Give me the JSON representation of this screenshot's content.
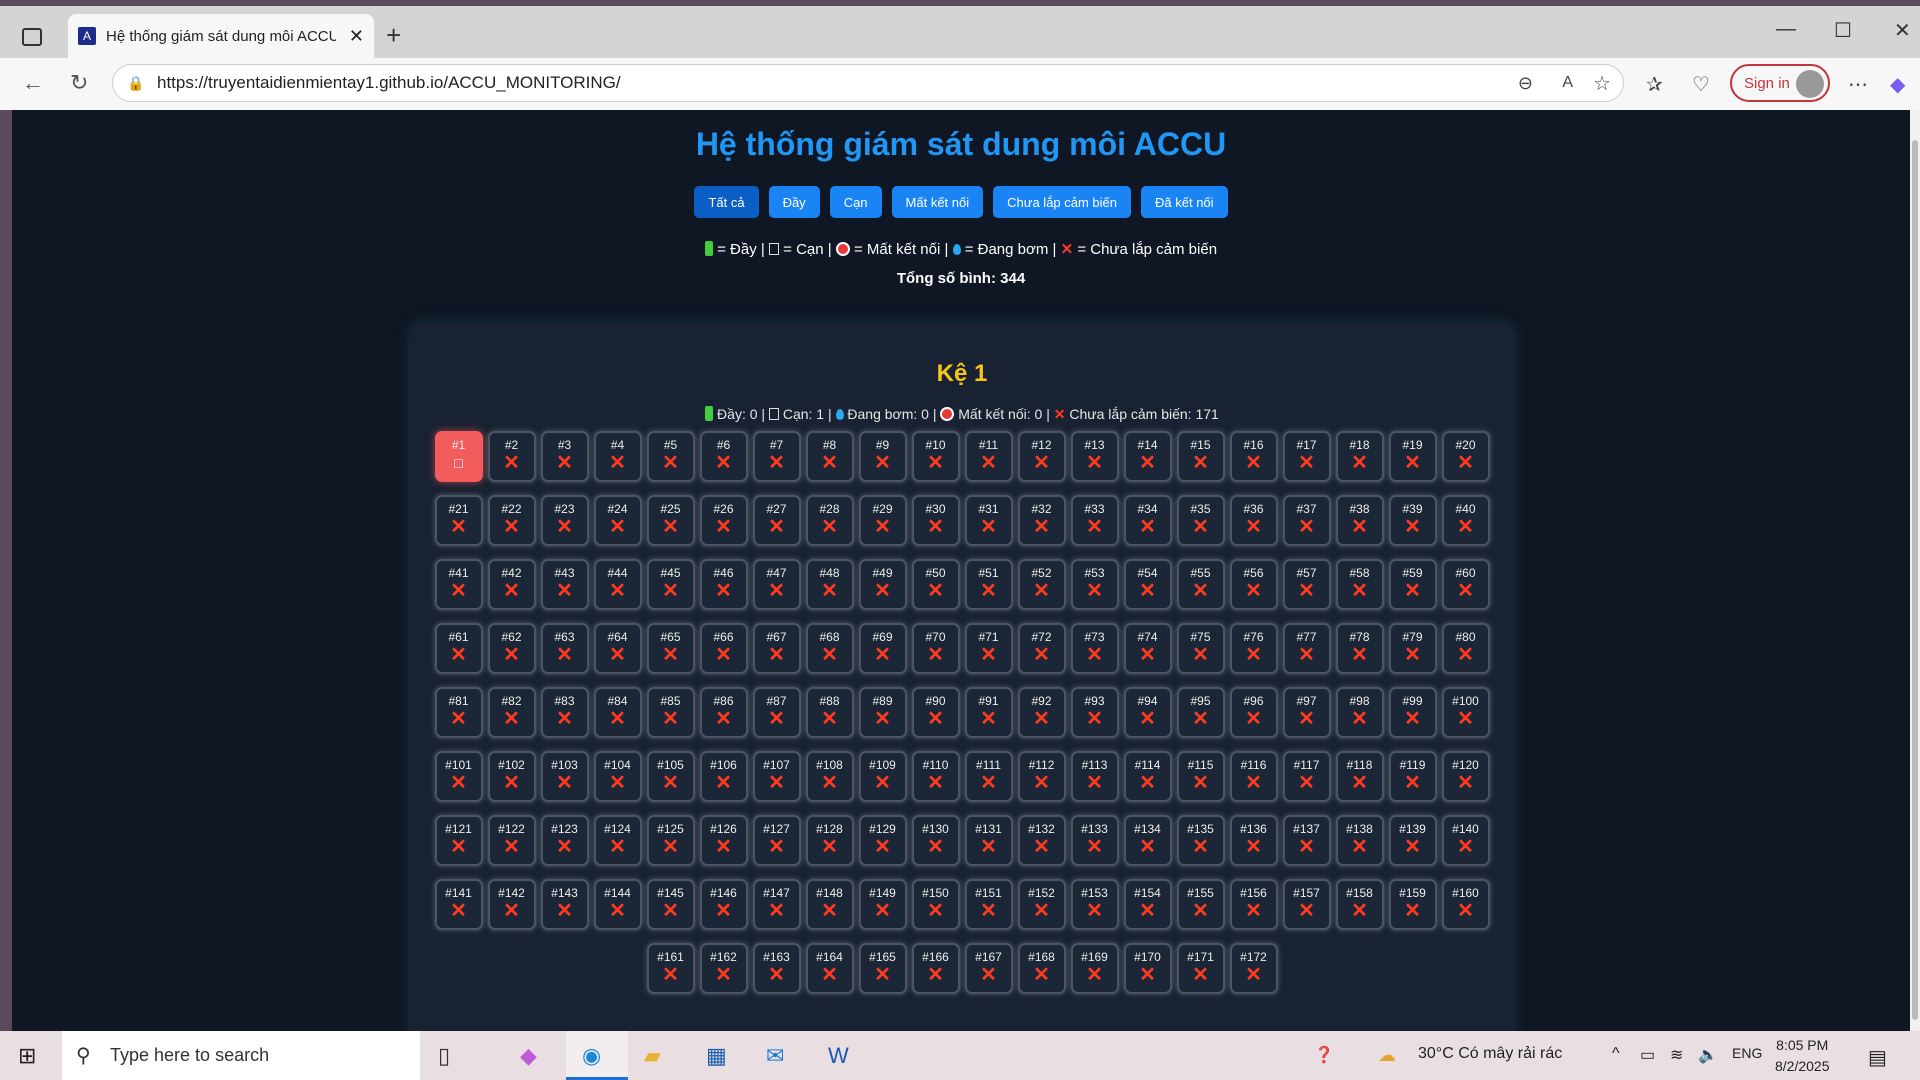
{
  "browser": {
    "tab_title": "Hệ thống giám sát dung môi ACCU",
    "url": "https://truyentaidienmientay1.github.io/ACCU_MONITORING/",
    "sign_in": "Sign in"
  },
  "header": {
    "title": "Hệ thống giám sát dung môi ACCU"
  },
  "filters": [
    "Tất cả",
    "Đầy",
    "Cạn",
    "Mất kết nối",
    "Chưa lắp cảm biến",
    "Đã kết nối"
  ],
  "legend": {
    "full": "= Đầy |",
    "empty": "= Cạn |",
    "disconnected": "= Mất kết nối |",
    "pumping": "= Đang bơm |",
    "no_sensor": "= Chưa lắp cảm biến"
  },
  "total": "Tổng số bình: 344",
  "rack": {
    "title": "Kệ 1",
    "stats": {
      "full": "Đầy: 0 |",
      "empty": "Cạn: 1 |",
      "pumping": "Đang bơm: 0 |",
      "disconnected": "Mất kết nối: 0 |",
      "no_sensor": "Chưa lắp cảm biến: 171"
    },
    "cell_count": 172,
    "cell_status_default": "no-sensor",
    "cell_status_overrides": {
      "1": "empty"
    },
    "cell_labels": [
      "#1",
      "#2",
      "#3",
      "#4",
      "#5",
      "#6",
      "#7",
      "#8",
      "#9",
      "#10",
      "#11",
      "#12",
      "#13",
      "#14",
      "#15",
      "#16",
      "#17",
      "#18",
      "#19",
      "#20",
      "#21",
      "#22",
      "#23",
      "#24",
      "#25",
      "#26",
      "#27",
      "#28",
      "#29",
      "#30",
      "#31",
      "#32",
      "#33",
      "#34",
      "#35",
      "#36",
      "#37",
      "#38",
      "#39",
      "#40",
      "#41",
      "#42",
      "#43",
      "#44",
      "#45",
      "#46",
      "#47",
      "#48",
      "#49",
      "#50",
      "#51",
      "#52",
      "#53",
      "#54",
      "#55",
      "#56",
      "#57",
      "#58",
      "#59",
      "#60",
      "#61",
      "#62",
      "#63",
      "#64",
      "#65",
      "#66",
      "#67",
      "#68",
      "#69",
      "#70",
      "#71",
      "#72",
      "#73",
      "#74",
      "#75",
      "#76",
      "#77",
      "#78",
      "#79",
      "#80",
      "#81",
      "#82",
      "#83",
      "#84",
      "#85",
      "#86",
      "#87",
      "#88",
      "#89",
      "#90",
      "#91",
      "#92",
      "#93",
      "#94",
      "#95",
      "#96",
      "#97",
      "#98",
      "#99",
      "#100",
      "#101",
      "#102",
      "#103",
      "#104",
      "#105",
      "#106",
      "#107",
      "#108",
      "#109",
      "#110",
      "#111",
      "#112",
      "#113",
      "#114",
      "#115",
      "#116",
      "#117",
      "#118",
      "#119",
      "#120",
      "#121",
      "#122",
      "#123",
      "#124",
      "#125",
      "#126",
      "#127",
      "#128",
      "#129",
      "#130",
      "#131",
      "#132",
      "#133",
      "#134",
      "#135",
      "#136",
      "#137",
      "#138",
      "#139",
      "#140",
      "#141",
      "#142",
      "#143",
      "#144",
      "#145",
      "#146",
      "#147",
      "#148",
      "#149",
      "#150",
      "#151",
      "#152",
      "#153",
      "#154",
      "#155",
      "#156",
      "#157",
      "#158",
      "#159",
      "#160",
      "#161",
      "#162",
      "#163",
      "#164",
      "#165",
      "#166",
      "#167",
      "#168",
      "#169",
      "#170",
      "#171",
      "#172"
    ]
  },
  "colors": {
    "title": "#2196f3",
    "button": "#1a84f5",
    "rack_title": "#f5c518",
    "empty_cell": "#f25c5c",
    "no_sensor_x": "#ff3b1f"
  },
  "taskbar": {
    "search_placeholder": "Type here to search",
    "weather": "30°C  Có mây rải rác",
    "lang": "ENG",
    "time": "8:05 PM",
    "date": "8/2/2025"
  }
}
